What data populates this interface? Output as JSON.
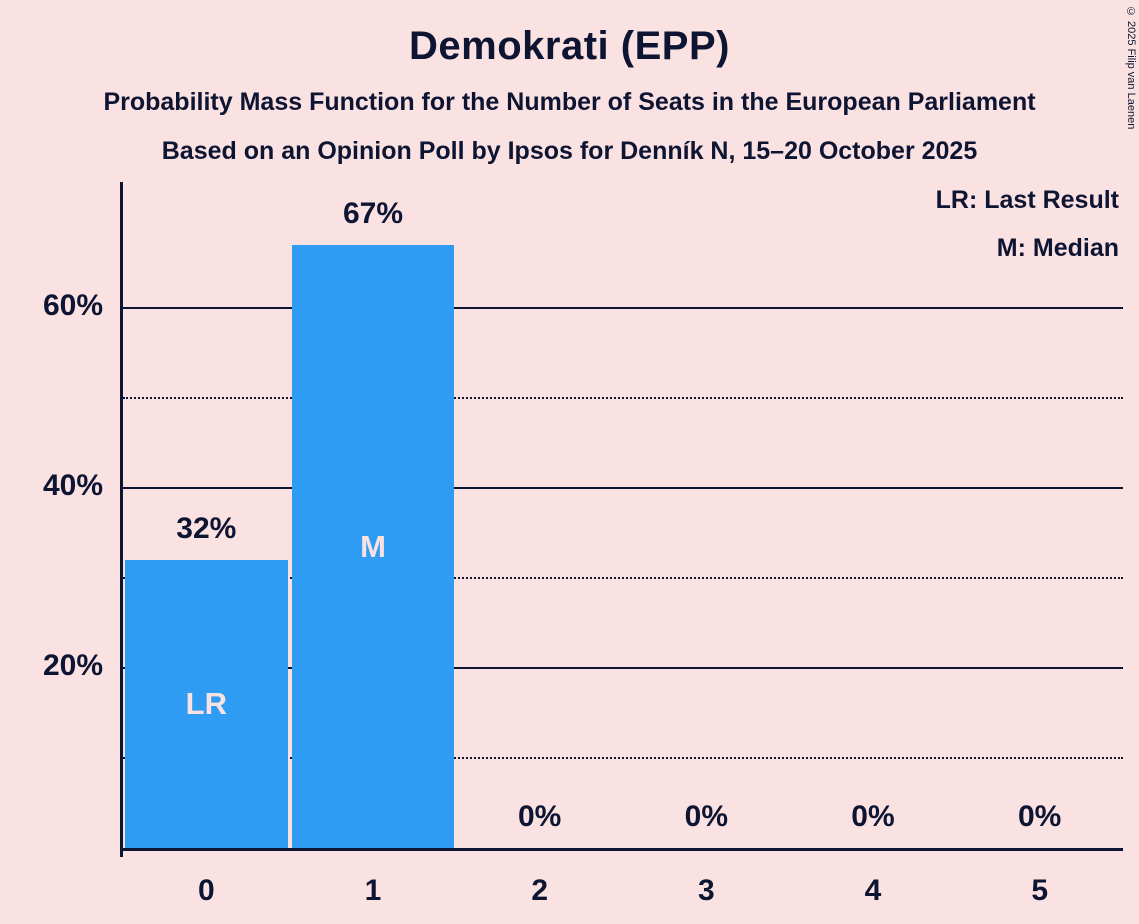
{
  "page": {
    "background": "#fbe2e2",
    "text_color": "#0e1532",
    "copyright": "© 2025 Filip van Laenen"
  },
  "header": {
    "title": "Demokrati (EPP)",
    "subtitle1": "Probability Mass Function for the Number of Seats in the European Parliament",
    "subtitle2": "Based on an Opinion Poll by Ipsos for Denník N, 15–20 October 2025"
  },
  "legend": {
    "lines": [
      "LR: Last Result",
      "M: Median"
    ]
  },
  "chart_data": {
    "type": "bar",
    "title": "Demokrati (EPP)",
    "subtitle": "Probability Mass Function for the Number of Seats in the European Parliament",
    "categories": [
      "0",
      "1",
      "2",
      "3",
      "4",
      "5"
    ],
    "values": [
      32,
      67,
      0,
      0,
      0,
      0
    ],
    "value_labels": [
      "32%",
      "67%",
      "0%",
      "0%",
      "0%",
      "0%"
    ],
    "bar_annotations": [
      "LR",
      "M",
      "",
      "",
      "",
      ""
    ],
    "ylim": [
      0,
      74
    ],
    "yticks": [
      {
        "value": 20,
        "label": "20%"
      },
      {
        "value": 40,
        "label": "40%"
      },
      {
        "value": 60,
        "label": "60%"
      }
    ],
    "solid_gridlines": [
      20,
      40,
      60
    ],
    "dotted_gridlines": [
      10,
      30,
      50
    ],
    "legend_entries": [
      "LR: Last Result",
      "M: Median"
    ],
    "bar_color": "#2f9cf4",
    "background_color": "#fbe2e2",
    "text_color": "#0e1532",
    "annotation_text_color": "#fbe2e2",
    "grid": true,
    "legend_position": "top-right"
  }
}
